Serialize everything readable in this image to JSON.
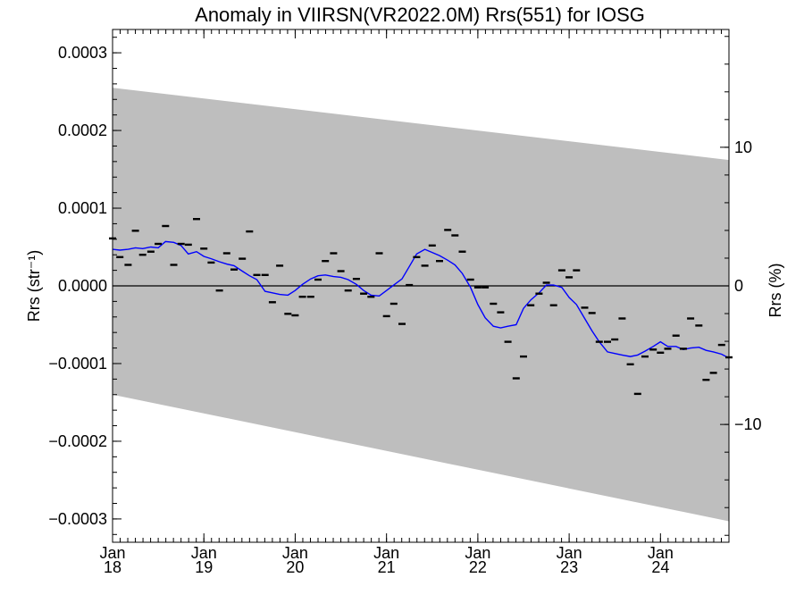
{
  "chart_data": {
    "type": "line",
    "title": "Anomaly in VIIRSN(VR2022.0M) Rrs(551) for IOSG",
    "xlabel": "",
    "ylabel_left": "Rrs (str⁻¹)",
    "ylabel_right": "Rrs (%)",
    "xlim": [
      2018.0,
      2024.75
    ],
    "ylim_left": [
      -0.00033,
      0.00033
    ],
    "ylim_right": [
      -18.5,
      18.5
    ],
    "yticks_left": [
      {
        "value": 0.0003,
        "label": "0.0003"
      },
      {
        "value": 0.0002,
        "label": "0.0002"
      },
      {
        "value": 0.0001,
        "label": "0.0001"
      },
      {
        "value": 0.0,
        "label": "0.0000"
      },
      {
        "value": -0.0001,
        "label": "−0.0001"
      },
      {
        "value": -0.0002,
        "label": "−0.0002"
      },
      {
        "value": -0.0003,
        "label": "−0.0003"
      }
    ],
    "yticks_right": [
      {
        "value": 10,
        "label": "10"
      },
      {
        "value": 0,
        "label": "0"
      },
      {
        "value": -10,
        "label": "−10"
      }
    ],
    "xticks": [
      {
        "value": 2018,
        "month": "Jan",
        "year": "18"
      },
      {
        "value": 2019,
        "month": "Jan",
        "year": "19"
      },
      {
        "value": 2020,
        "month": "Jan",
        "year": "20"
      },
      {
        "value": 2021,
        "month": "Jan",
        "year": "21"
      },
      {
        "value": 2022,
        "month": "Jan",
        "year": "22"
      },
      {
        "value": 2023,
        "month": "Jan",
        "year": "23"
      },
      {
        "value": 2024,
        "month": "Jan",
        "year": "24"
      }
    ],
    "band": {
      "x": [
        2018.0,
        2024.75
      ],
      "upper": [
        0.000255,
        0.000162
      ],
      "lower": [
        -0.00014,
        -0.000303
      ],
      "color": "#bebebe"
    },
    "series": [
      {
        "kind": "monthly-points",
        "color": "#000000",
        "x": [
          2018.0,
          2018.08,
          2018.17,
          2018.25,
          2018.33,
          2018.42,
          2018.5,
          2018.58,
          2018.67,
          2018.75,
          2018.83,
          2018.92,
          2019.0,
          2019.08,
          2019.17,
          2019.25,
          2019.33,
          2019.42,
          2019.5,
          2019.58,
          2019.67,
          2019.75,
          2019.83,
          2019.92,
          2020.0,
          2020.08,
          2020.17,
          2020.25,
          2020.33,
          2020.42,
          2020.5,
          2020.58,
          2020.67,
          2020.75,
          2020.83,
          2020.92,
          2021.0,
          2021.08,
          2021.17,
          2021.25,
          2021.33,
          2021.42,
          2021.5,
          2021.58,
          2021.67,
          2021.75,
          2021.83,
          2021.92,
          2022.0,
          2022.08,
          2022.17,
          2022.25,
          2022.33,
          2022.42,
          2022.5,
          2022.58,
          2022.67,
          2022.75,
          2022.83,
          2022.92,
          2023.0,
          2023.08,
          2023.17,
          2023.25,
          2023.33,
          2023.42,
          2023.5,
          2023.58,
          2023.67,
          2023.75,
          2023.83,
          2023.92,
          2024.0,
          2024.08,
          2024.17,
          2024.25,
          2024.33,
          2024.42,
          2024.5,
          2024.58,
          2024.67,
          2024.75
        ],
        "y": [
          6.1e-05,
          3.7e-05,
          2.7e-05,
          7.1e-05,
          4e-05,
          4.4e-05,
          5.4e-05,
          7.7e-05,
          2.7e-05,
          5.4e-05,
          5.3e-05,
          8.6e-05,
          4.8e-05,
          3e-05,
          -6e-06,
          4.2e-05,
          2.1e-05,
          3.5e-05,
          7e-05,
          1.4e-05,
          1.4e-05,
          -2.1e-05,
          2.6e-05,
          -3.6e-05,
          -3.8e-05,
          -1.4e-05,
          -1.4e-05,
          8e-06,
          3.2e-05,
          4.2e-05,
          1.9e-05,
          -6e-06,
          9e-06,
          -1e-05,
          -1.4e-05,
          4.2e-05,
          -3.9e-05,
          -2.3e-05,
          -4.9e-05,
          1e-06,
          3.7e-05,
          2.6e-05,
          5.2e-05,
          3.2e-05,
          7.2e-05,
          6.5e-05,
          4.4e-05,
          8e-06,
          -2e-06,
          -2e-06,
          -2.3e-05,
          -3.4e-05,
          -7.2e-05,
          -0.000119,
          -9.1e-05,
          -2.5e-05,
          -1e-05,
          4e-06,
          -2.5e-05,
          2e-05,
          1.1e-05,
          2e-05,
          -2.8e-05,
          -3.5e-05,
          -7.2e-05,
          -7.2e-05,
          -6.9e-05,
          -4.2e-05,
          -0.000101,
          -0.000139,
          -9.1e-05,
          -8.2e-05,
          -8.6e-05,
          -8.1e-05,
          -6.4e-05,
          -8.1e-05,
          -4.2e-05,
          -5.1e-05,
          -0.000121,
          -0.000112,
          -7.6e-05,
          -9.2e-05
        ]
      },
      {
        "kind": "smoothed-line",
        "color": "#0000ff",
        "x": [
          2018.0,
          2018.08,
          2018.17,
          2018.25,
          2018.33,
          2018.42,
          2018.5,
          2018.58,
          2018.67,
          2018.75,
          2018.83,
          2018.92,
          2019.0,
          2019.08,
          2019.17,
          2019.25,
          2019.33,
          2019.42,
          2019.5,
          2019.58,
          2019.67,
          2019.75,
          2019.83,
          2019.92,
          2020.0,
          2020.08,
          2020.17,
          2020.25,
          2020.33,
          2020.42,
          2020.5,
          2020.58,
          2020.67,
          2020.75,
          2020.83,
          2020.92,
          2021.0,
          2021.08,
          2021.17,
          2021.25,
          2021.33,
          2021.42,
          2021.5,
          2021.58,
          2021.67,
          2021.75,
          2021.83,
          2021.92,
          2022.0,
          2022.08,
          2022.17,
          2022.25,
          2022.33,
          2022.42,
          2022.5,
          2022.58,
          2022.67,
          2022.75,
          2022.83,
          2022.92,
          2023.0,
          2023.08,
          2023.17,
          2023.25,
          2023.33,
          2023.42,
          2023.5,
          2023.58,
          2023.67,
          2023.75,
          2023.83,
          2023.92,
          2024.0,
          2024.08,
          2024.17,
          2024.25,
          2024.33,
          2024.42,
          2024.5,
          2024.58,
          2024.67,
          2024.75
        ],
        "y": [
          4.7e-05,
          4.6e-05,
          4.7e-05,
          4.9e-05,
          4.8e-05,
          5e-05,
          4.9e-05,
          5.7e-05,
          5.6e-05,
          5.2e-05,
          4.1e-05,
          4.4e-05,
          3.8e-05,
          3.5e-05,
          3.1e-05,
          2.8e-05,
          2.6e-05,
          1.9e-05,
          1.3e-05,
          8e-06,
          -7e-06,
          -9e-06,
          -1.1e-05,
          -1.2e-05,
          -6e-06,
          2e-06,
          9e-06,
          1.3e-05,
          1.4e-05,
          1.2e-05,
          1.1e-05,
          8e-06,
          2e-06,
          -6e-06,
          -1.2e-05,
          -1.3e-05,
          -6e-06,
          1e-06,
          9e-06,
          2.5e-05,
          4.1e-05,
          4.7e-05,
          4.3e-05,
          3.9e-05,
          3.3e-05,
          2.7e-05,
          1.6e-05,
          -2e-06,
          -2.4e-05,
          -4.1e-05,
          -5.2e-05,
          -5.4e-05,
          -5.2e-05,
          -5e-05,
          -2.9e-05,
          -1.8e-05,
          -9e-06,
          1e-06,
          1e-06,
          -2e-06,
          -1.5e-05,
          -2.4e-05,
          -4.2e-05,
          -5.8e-05,
          -7.2e-05,
          -8.5e-05,
          -8.7e-05,
          -8.9e-05,
          -9.1e-05,
          -8.9e-05,
          -8.4e-05,
          -7.8e-05,
          -7.2e-05,
          -7.8e-05,
          -7.8e-05,
          -8.2e-05,
          -8e-05,
          -7.9e-05,
          -8.3e-05,
          -8.5e-05,
          -8.8e-05,
          -9.3e-05
        ]
      }
    ],
    "zero_line": true,
    "grid": false,
    "legend": "none"
  }
}
